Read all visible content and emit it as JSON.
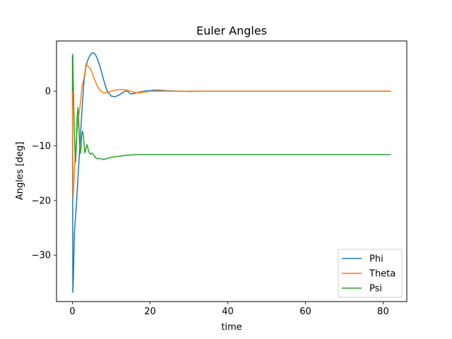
{
  "chart_data": {
    "type": "line",
    "title": "Euler Angles",
    "xlabel": "time",
    "ylabel": "Angles [deg]",
    "xlim": [
      -4.1,
      86.1
    ],
    "ylim": [
      -38.5,
      9.2
    ],
    "xticks": [
      0,
      20,
      40,
      60,
      80
    ],
    "xtick_labels": [
      "0",
      "20",
      "40",
      "60",
      "80"
    ],
    "yticks": [
      -30,
      -20,
      -10,
      0
    ],
    "ytick_labels": [
      "−30",
      "−20",
      "−10",
      "0"
    ],
    "grid": false,
    "legend_position": "lower-right",
    "series": [
      {
        "name": "Phi",
        "color": "#1f77b4",
        "x": [
          0,
          0.1,
          0.25,
          0.5,
          1,
          1.5,
          2,
          2.5,
          3,
          3.5,
          4,
          4.5,
          5,
          5.5,
          6,
          6.5,
          7,
          7.5,
          8,
          8.5,
          9,
          10,
          11,
          12,
          13,
          14,
          15,
          16,
          17,
          18,
          19,
          20,
          21,
          22,
          24,
          26,
          28,
          30,
          35,
          40,
          50,
          60,
          70,
          80,
          82
        ],
        "y": [
          6.5,
          -36.8,
          -34,
          -26,
          -21,
          -15,
          -9,
          -3,
          2,
          4.6,
          5.8,
          6.5,
          7,
          7,
          6.6,
          5.8,
          4.7,
          3.5,
          2.2,
          1,
          0,
          -0.9,
          -1,
          -0.7,
          -0.2,
          0.1,
          -0.5,
          -0.4,
          -0.2,
          -0.05,
          0.05,
          0.1,
          0.2,
          0.2,
          0.1,
          0.05,
          0,
          -0.05,
          0,
          0,
          0,
          0,
          0,
          0,
          0
        ]
      },
      {
        "name": "Theta",
        "color": "#ff7f0e",
        "x": [
          0,
          0.15,
          0.3,
          0.5,
          1,
          1.5,
          2,
          2.5,
          3,
          3.5,
          4,
          4.5,
          5,
          5.5,
          6,
          6.5,
          7,
          7.5,
          8,
          9,
          10,
          11,
          12,
          13,
          14,
          15,
          16,
          17,
          18,
          19,
          20,
          22,
          24,
          26,
          28,
          30,
          35,
          40,
          50,
          60,
          70,
          80,
          82
        ],
        "y": [
          0,
          -19.7,
          -18,
          -14,
          -9,
          -5,
          -2.5,
          1,
          2.5,
          5,
          4.5,
          4.3,
          3.5,
          2.5,
          1.6,
          0.8,
          0.2,
          -0.1,
          -0.3,
          -0.2,
          0,
          0.2,
          0.3,
          0.3,
          0.2,
          0,
          -0.2,
          -0.3,
          -0.2,
          -0.1,
          0,
          0,
          0,
          0,
          0,
          0,
          0,
          0,
          0,
          0,
          0,
          0,
          0
        ]
      },
      {
        "name": "Psi",
        "color": "#2ca02c",
        "x": [
          0,
          0.1,
          0.2,
          0.4,
          0.6,
          0.8,
          1,
          1.2,
          1.4,
          1.6,
          1.8,
          2,
          2.2,
          2.4,
          2.6,
          2.8,
          3,
          3.2,
          3.4,
          3.6,
          3.8,
          4,
          4.2,
          4.4,
          4.6,
          4.8,
          5,
          5.5,
          6,
          6.5,
          7,
          7.5,
          8,
          9,
          10,
          11,
          12,
          13,
          14,
          15,
          16,
          18,
          20,
          25,
          30,
          40,
          50,
          60,
          70,
          80,
          82
        ],
        "y": [
          0,
          6.8,
          2,
          -5,
          -10,
          -13,
          -10,
          -5,
          -3,
          -5,
          -9,
          -11.4,
          -10.5,
          -8,
          -7.3,
          -8,
          -9.8,
          -11.3,
          -10.8,
          -10,
          -9.8,
          -10.5,
          -11,
          -11.4,
          -11.5,
          -11.4,
          -11.3,
          -11.7,
          -12.2,
          -12.4,
          -12.3,
          -12.4,
          -12.5,
          -12.3,
          -12.1,
          -12,
          -11.9,
          -11.8,
          -11.7,
          -11.7,
          -11.6,
          -11.6,
          -11.6,
          -11.6,
          -11.6,
          -11.6,
          -11.6,
          -11.6,
          -11.6,
          -11.6,
          -11.6
        ]
      }
    ]
  }
}
